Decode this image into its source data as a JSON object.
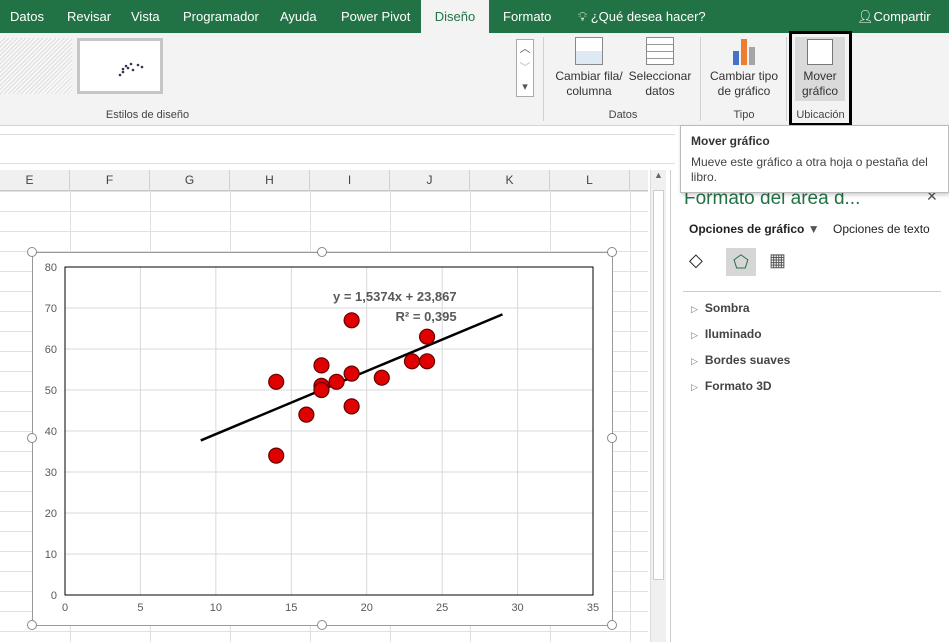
{
  "tabs": [
    "Datos",
    "Revisar",
    "Vista",
    "Programador",
    "Ayuda",
    "Power Pivot",
    "Diseño",
    "Formato"
  ],
  "active_tab": "Diseño",
  "tell_me": "¿Qué desea hacer?",
  "share": "Compartir",
  "ribbon": {
    "styles_group": "Estilos de diseño",
    "switch_row_col": "Cambiar fila/ columna",
    "select_data": "Seleccionar datos",
    "data_group": "Datos",
    "change_type": "Cambiar tipo de gráfico",
    "type_group": "Tipo",
    "move_chart": "Mover gráfico",
    "location_group": "Ubicación"
  },
  "tooltip": {
    "title": "Mover gráfico",
    "text": "Mueve este gráfico a otra hoja o pestaña del libro."
  },
  "columns": [
    "E",
    "F",
    "G",
    "H",
    "I",
    "J",
    "K",
    "L"
  ],
  "panel": {
    "title": "Formato del área d...",
    "chart_options": "Opciones de gráfico",
    "text_options": "Opciones de texto",
    "sections": [
      "Sombra",
      "Iluminado",
      "Bordes suaves",
      "Formato 3D"
    ]
  },
  "colors": {
    "accent": "#217346",
    "marker": "#e00000"
  },
  "chart_data": {
    "type": "scatter",
    "x": [
      14,
      14,
      16,
      17,
      17,
      17,
      18,
      19,
      19,
      19,
      21,
      23,
      24,
      24
    ],
    "y": [
      52,
      34,
      44,
      56,
      51,
      50,
      52,
      54,
      67,
      46,
      53,
      57,
      63,
      57
    ],
    "xlim": [
      0,
      35
    ],
    "ylim": [
      0,
      80
    ],
    "xticks": [
      0,
      5,
      10,
      15,
      20,
      25,
      30,
      35
    ],
    "yticks": [
      0,
      10,
      20,
      30,
      40,
      50,
      60,
      70,
      80
    ],
    "grid": true,
    "trendline": {
      "slope": 1.5374,
      "intercept": 23.867,
      "x_range": [
        9,
        29
      ],
      "equation": "y = 1,5374x + 23,867",
      "r2": "R² = 0,395"
    }
  }
}
